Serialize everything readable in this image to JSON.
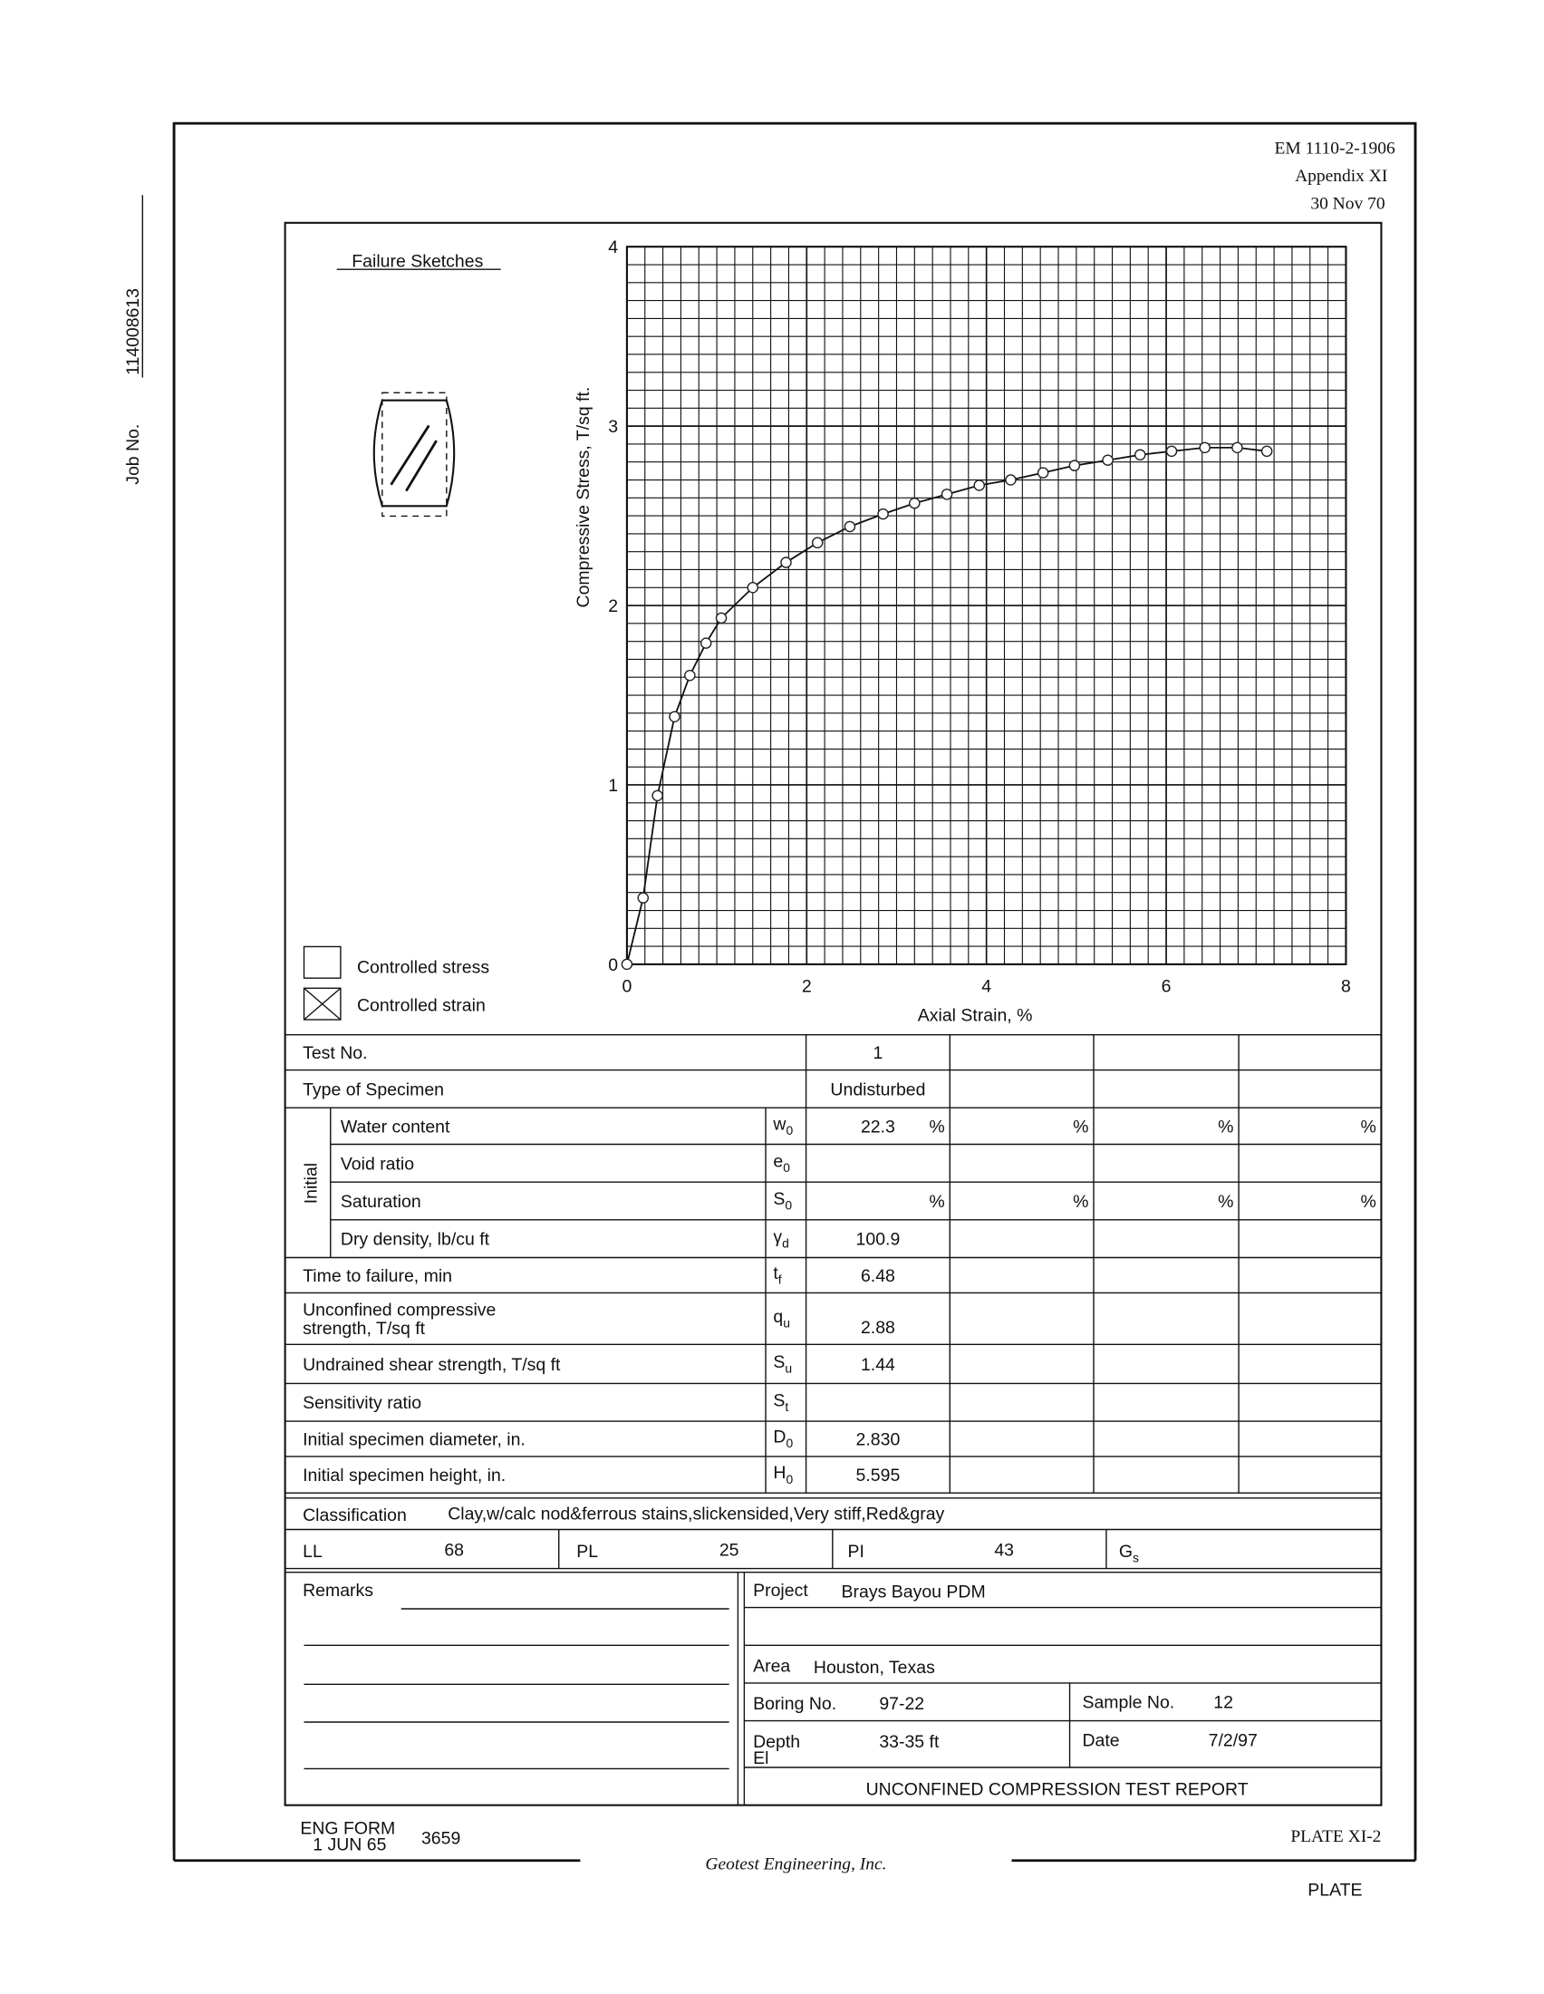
{
  "header": {
    "form": "EM 1110-2-1906",
    "appendix": "Appendix XI",
    "date": "30 Nov 70"
  },
  "job": {
    "label": "Job No.",
    "number": "114008613"
  },
  "sketches": {
    "title": "Failure Sketches",
    "stress": "Controlled stress",
    "strain": "Controlled strain"
  },
  "chart_data": {
    "type": "line",
    "x_label": "Axial Strain, %",
    "y_label": "Compressive Stress, T/sq ft.",
    "x": [
      0,
      0.18,
      0.34,
      0.53,
      0.7,
      0.88,
      1.05,
      1.4,
      1.77,
      2.12,
      2.48,
      2.85,
      3.2,
      3.56,
      3.92,
      4.27,
      4.63,
      4.98,
      5.35,
      5.71,
      6.06,
      6.43,
      6.79,
      7.12
    ],
    "values": [
      0,
      0.37,
      0.94,
      1.38,
      1.61,
      1.79,
      1.93,
      2.1,
      2.24,
      2.35,
      2.44,
      2.51,
      2.57,
      2.62,
      2.67,
      2.7,
      2.74,
      2.78,
      2.81,
      2.84,
      2.86,
      2.88,
      2.88,
      2.86
    ],
    "color": "#222222",
    "xlim": [
      0,
      8
    ],
    "xticks": [
      0,
      2,
      4,
      6,
      8
    ],
    "ylim": [
      0,
      4
    ],
    "yticks": [
      0,
      1,
      2,
      3,
      4
    ],
    "grid": true
  },
  "table": {
    "group": "Initial",
    "rows": [
      {
        "label": "Test No.",
        "values": [
          "1"
        ]
      },
      {
        "label": "Type of Specimen",
        "values": [
          "Undisturbed"
        ]
      },
      {
        "label": "Water content",
        "symbol": {
          "base": "w",
          "sub": "0"
        },
        "values": [
          "22.3"
        ],
        "unit": "%"
      },
      {
        "label": "Void ratio",
        "symbol": {
          "base": "e",
          "sub": "0"
        }
      },
      {
        "label": "Saturation",
        "symbol": {
          "base": "S",
          "sub": "0"
        },
        "unit": "%"
      },
      {
        "label": "Dry density, lb/cu ft",
        "symbol": {
          "base": "γ",
          "sub": "d"
        },
        "values": [
          "100.9"
        ]
      },
      {
        "label": "Time to failure, min",
        "symbol": {
          "base": "t",
          "sub": "f"
        },
        "values": [
          "6.48"
        ]
      },
      {
        "label": [
          "Unconfined compressive",
          "strength, T/sq ft"
        ],
        "symbol": {
          "base": "q",
          "sub": "u"
        },
        "values": [
          "2.88"
        ]
      },
      {
        "label": "Undrained shear strength, T/sq ft",
        "symbol": {
          "base": "S",
          "sub": "u"
        },
        "values": [
          "1.44"
        ]
      },
      {
        "label": "Sensitivity ratio",
        "symbol": {
          "base": "S",
          "sub": "t"
        }
      },
      {
        "label": "Initial specimen diameter, in.",
        "symbol": {
          "base": "D",
          "sub": "0"
        },
        "values": [
          "2.830"
        ]
      },
      {
        "label": "Initial specimen height, in.",
        "symbol": {
          "base": "H",
          "sub": "0"
        },
        "values": [
          "5.595"
        ]
      }
    ]
  },
  "classification": {
    "label": "Classification",
    "value": "Clay,w/calc nod&ferrous stains,slickensided,Very stiff,Red&gray"
  },
  "limits": [
    {
      "label": "LL",
      "value": "68"
    },
    {
      "label": "PL",
      "value": "25"
    },
    {
      "label": "PI",
      "value": "43"
    },
    {
      "label": "G",
      "sub": "s"
    }
  ],
  "remarks": "Remarks",
  "project": {
    "project_label": "Project",
    "project": "Brays Bayou PDM",
    "area_label": "Area",
    "area": "Houston, Texas",
    "boring_label": "Boring No.",
    "boring": "97-22",
    "sample_label": "Sample No.",
    "sample": "12",
    "depth_label": "Depth",
    "el_label": "El",
    "depth": "33-35 ft",
    "date_label": "Date",
    "date": "7/2/97",
    "report_title": "UNCONFINED COMPRESSION TEST REPORT"
  },
  "footer": {
    "form": "ENG FORM",
    "form_date": "1 JUN 65",
    "form_no": "3659",
    "plate": "PLATE XI-2",
    "company": "Geotest Engineering, Inc.",
    "plate_mark": "PLATE"
  }
}
